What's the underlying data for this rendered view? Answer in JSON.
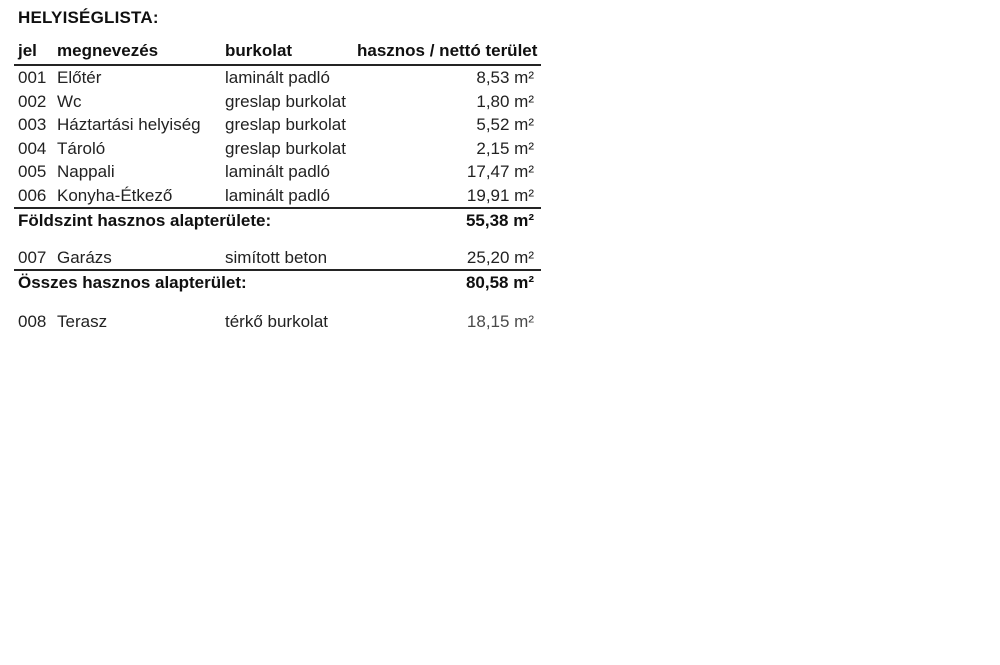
{
  "page": {
    "title": "HELYISÉGLISTA:"
  },
  "colors": {
    "background": "#ffffff",
    "text": "#222222",
    "bold_text": "#101010",
    "rule": "#242424"
  },
  "table": {
    "headers": {
      "jel": "jel",
      "name": "megnevezés",
      "floor": "burkolat",
      "area": "hasznos / nettó terület"
    },
    "rows": [
      {
        "jel": "001",
        "name": "Előtér",
        "floor": "laminált padló",
        "area": "8,53 m²"
      },
      {
        "jel": "002",
        "name": "Wc",
        "floor": "greslap burkolat",
        "area": "1,80 m²"
      },
      {
        "jel": "003",
        "name": "Háztartási helyiség",
        "floor": "greslap burkolat",
        "area": "5,52 m²"
      },
      {
        "jel": "004",
        "name": "Tároló",
        "floor": "greslap burkolat",
        "area": "2,15 m²"
      },
      {
        "jel": "005",
        "name": "Nappali",
        "floor": "laminált padló",
        "area": "17,47 m²"
      },
      {
        "jel": "006",
        "name": "Konyha-Étkező",
        "floor": "laminált padló",
        "area": "19,91 m²"
      }
    ],
    "ground_floor_total": {
      "label": "Földszint hasznos alapterülete:",
      "area": "55,38 m²"
    },
    "garage_row": {
      "jel": "007",
      "name": "Garázs",
      "floor": "simított beton",
      "area": "25,20 m²"
    },
    "grand_total": {
      "label": "Összes hasznos alapterület:",
      "area": "80,58 m²"
    },
    "terrace_row": {
      "jel": "008",
      "name": "Terasz",
      "floor": "térkő burkolat",
      "area": "18,15 m²"
    }
  }
}
